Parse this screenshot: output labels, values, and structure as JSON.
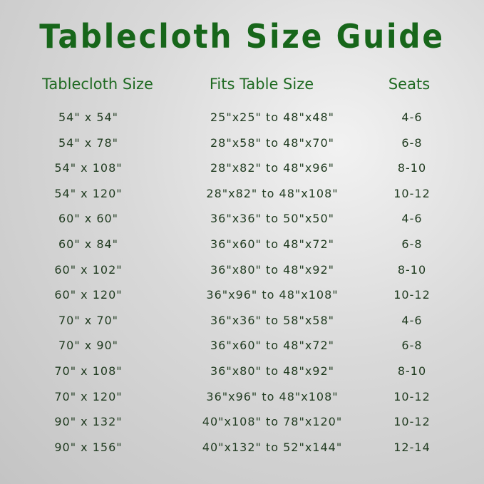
{
  "title": "Tablecloth Size Guide",
  "headers": [
    "Tablecloth Size",
    "Fits Table Size",
    "Seats"
  ],
  "rows": [
    [
      "54\" x 54\"",
      "25\"x25\" to 48\"x48\"",
      "4-6"
    ],
    [
      "54\" x 78\"",
      "28\"x58\" to 48\"x70\"",
      "6-8"
    ],
    [
      "54\" x 108\"",
      "28\"x82\" to 48\"x96\"",
      "8-10"
    ],
    [
      "54\" x 120\"",
      "28\"x82\" to 48\"x108\"",
      "10-12"
    ],
    [
      "60\" x 60\"",
      "36\"x36\" to 50\"x50\"",
      "4-6"
    ],
    [
      "60\" x 84\"",
      "36\"x60\" to 48\"x72\"",
      "6-8"
    ],
    [
      "60\" x 102\"",
      "36\"x80\" to 48\"x92\"",
      "8-10"
    ],
    [
      "60\" x 120\"",
      "36\"x96\" to 48\"x108\"",
      "10-12"
    ],
    [
      "70\" x 70\"",
      "36\"x36\" to 58\"x58\"",
      "4-6"
    ],
    [
      "70\" x 90\"",
      "36\"x60\" to 48\"x72\"",
      "6-8"
    ],
    [
      "70\" x 108\"",
      "36\"x80\" to 48\"x92\"",
      "8-10"
    ],
    [
      "70\" x 120\"",
      "36\"x96\" to 48\"x108\"",
      "10-12"
    ],
    [
      "90\" x 132\"",
      "40\"x108\" to 78\"x120\"",
      "10-12"
    ],
    [
      "90\" x 156\"",
      "40\"x132\" to 52\"x144\"",
      "12-14"
    ]
  ],
  "colors": {
    "title": "#17661a",
    "header": "#1f6a22",
    "text": "#1f3a1f"
  }
}
